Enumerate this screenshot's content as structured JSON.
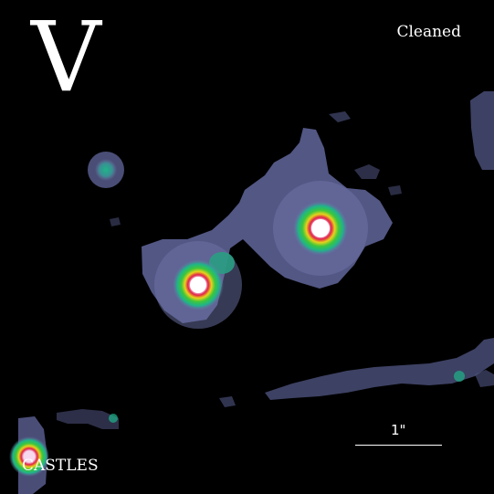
{
  "labels": {
    "band": "V",
    "processing": "Cleaned",
    "survey": "CASTLES",
    "scale": "1\""
  },
  "colors": {
    "background": "#000000",
    "halo": "#6e73a8",
    "teal": "#1fb48a",
    "green": "#3ec63c",
    "yellow": "#e8d21a",
    "red": "#e0224a",
    "core": "#ffffff"
  },
  "image": {
    "objects": [
      {
        "name": "lensed-image-a",
        "description": "bright compact source with white core"
      },
      {
        "name": "lensed-image-b",
        "description": "bright compact source with white core"
      },
      {
        "name": "faint-companion",
        "description": "faint greenish point source"
      },
      {
        "name": "edge-source",
        "description": "bright source at lower-left edge"
      }
    ]
  }
}
